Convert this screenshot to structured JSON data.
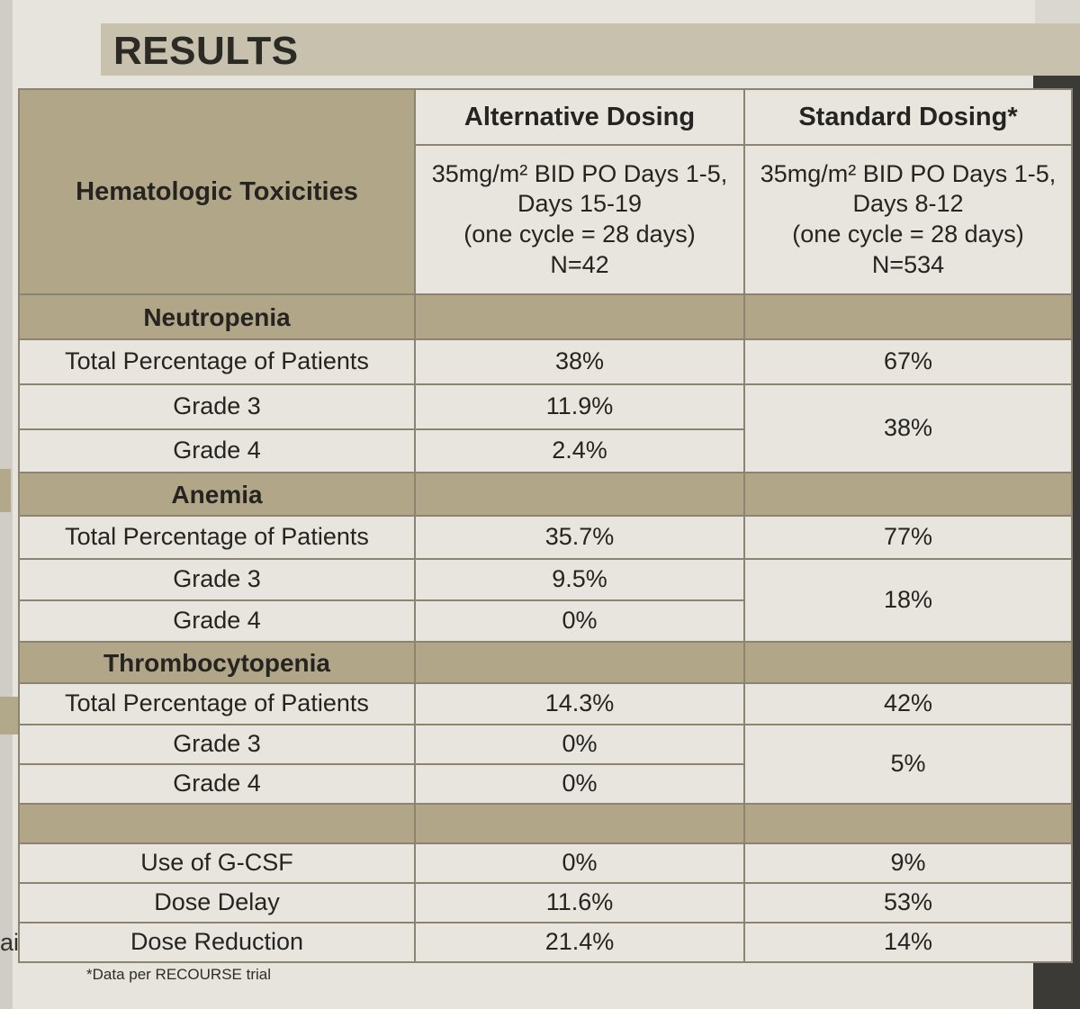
{
  "title": "RESULTS",
  "side_text": "ain",
  "header": {
    "left": "Hematologic Toxicities",
    "col1_title": "Alternative Dosing",
    "col2_title": "Standard Dosing*",
    "col1_regimen_line1": "35mg/m² BID PO Days 1-5,",
    "col1_regimen_line2": "Days 15-19",
    "col1_regimen_line3": "(one cycle = 28 days)",
    "col1_regimen_line4": "N=42",
    "col2_regimen_line1": "35mg/m² BID PO Days 1-5,",
    "col2_regimen_line2": "Days 8-12",
    "col2_regimen_line3": "(one cycle = 28 days)",
    "col2_regimen_line4": "N=534"
  },
  "sections": [
    {
      "name": "Neutropenia",
      "total": {
        "label": "Total Percentage of Patients",
        "alt": "38%",
        "std": "67%"
      },
      "grade3": {
        "label": "Grade 3",
        "alt": "11.9%"
      },
      "grade4": {
        "label": "Grade 4",
        "alt": "2.4%"
      },
      "std_grade34": "38%"
    },
    {
      "name": "Anemia",
      "total": {
        "label": "Total Percentage of Patients",
        "alt": "35.7%",
        "std": "77%"
      },
      "grade3": {
        "label": "Grade 3",
        "alt": "9.5%"
      },
      "grade4": {
        "label": "Grade 4",
        "alt": "0%"
      },
      "std_grade34": "18%"
    },
    {
      "name": "Thrombocytopenia",
      "total": {
        "label": "Total Percentage of Patients",
        "alt": "14.3%",
        "std": "42%"
      },
      "grade3": {
        "label": "Grade 3",
        "alt": "0%"
      },
      "grade4": {
        "label": "Grade 4",
        "alt": "0%"
      },
      "std_grade34": "5%"
    }
  ],
  "other": [
    {
      "label": "Use of G-CSF",
      "alt": "0%",
      "std": "9%"
    },
    {
      "label": "Dose Delay",
      "alt": "11.6%",
      "std": "53%"
    },
    {
      "label": "Dose Reduction",
      "alt": "21.4%",
      "std": "14%"
    }
  ],
  "footnote": "*Data per RECOURSE trial"
}
